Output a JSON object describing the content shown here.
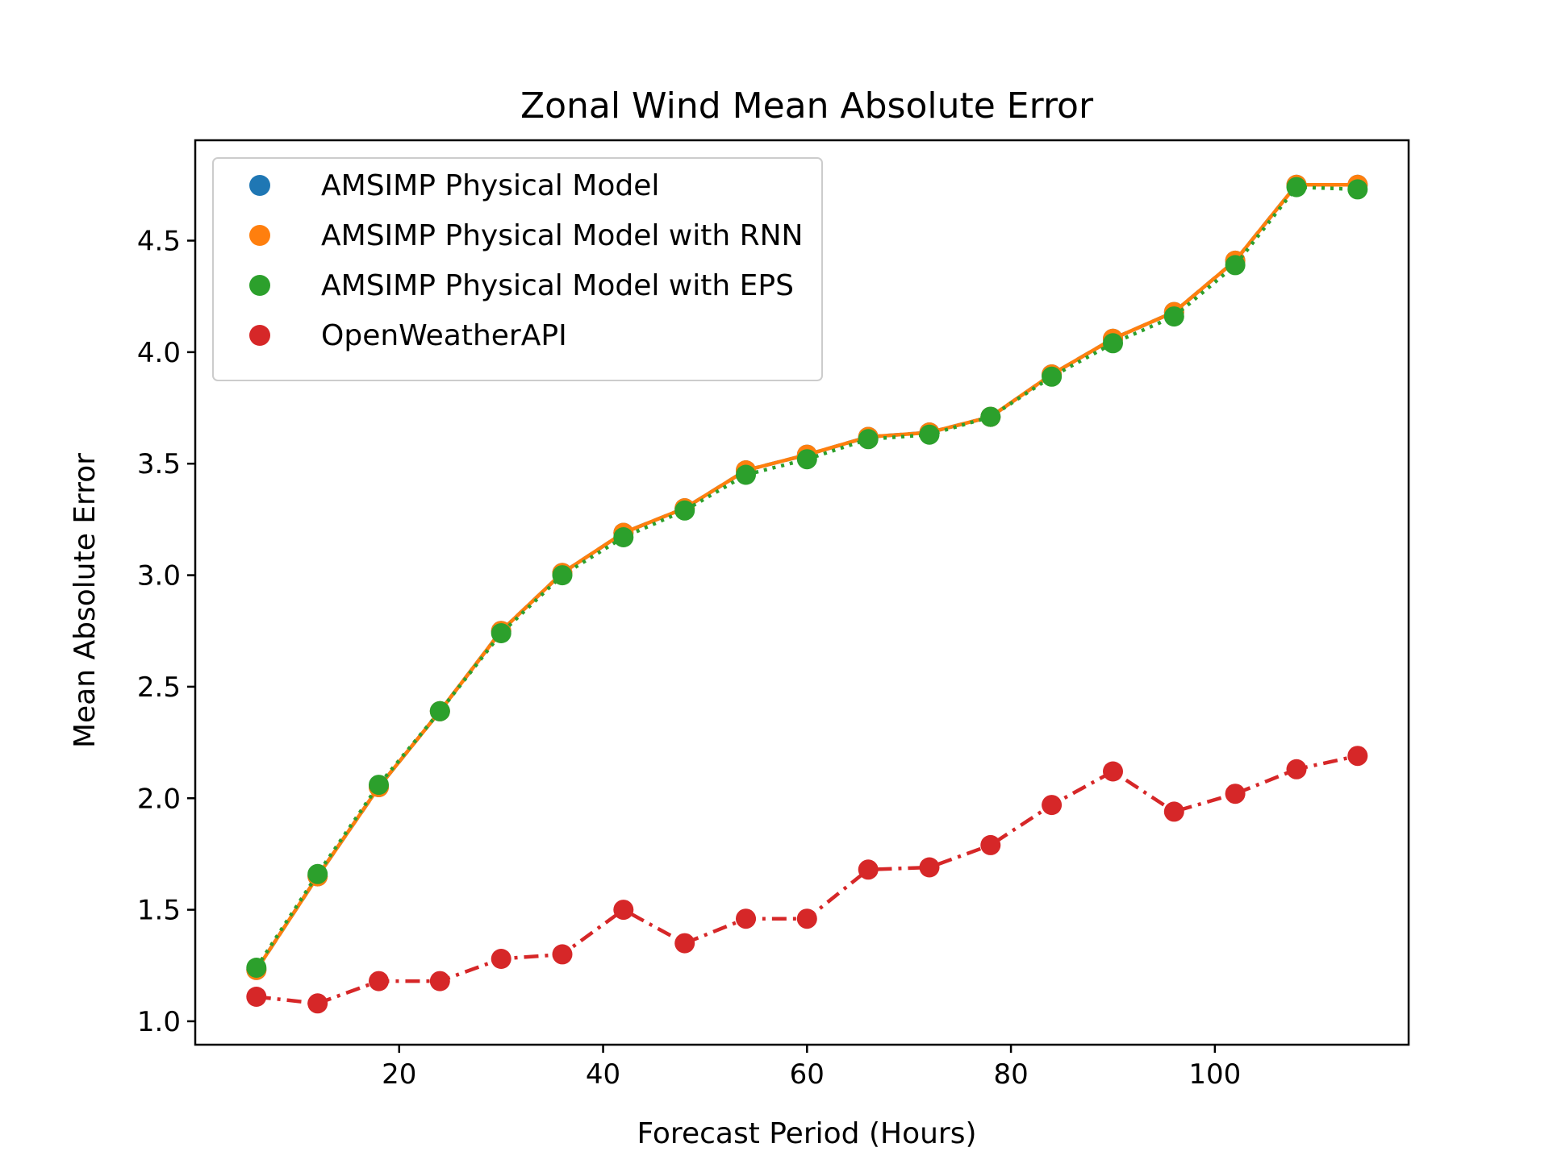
{
  "chart_data": {
    "type": "line",
    "title": "Zonal Wind Mean Absolute Error",
    "xlabel": "Forecast Period (Hours)",
    "ylabel": "Mean Absolute Error",
    "xlim": [
      0,
      119
    ],
    "ylim": [
      0.895,
      4.95
    ],
    "xticks": [
      20,
      40,
      60,
      80,
      100
    ],
    "xtick_labels": [
      "20",
      "40",
      "60",
      "80",
      "100"
    ],
    "yticks": [
      1.0,
      1.5,
      2.0,
      2.5,
      3.0,
      3.5,
      4.0,
      4.5
    ],
    "ytick_labels": [
      "1.0",
      "1.5",
      "2.0",
      "2.5",
      "3.0",
      "3.5",
      "4.0",
      "4.5"
    ],
    "grid": false,
    "legend_position": "top-left",
    "x": [
      6,
      12,
      18,
      24,
      30,
      36,
      42,
      48,
      54,
      60,
      66,
      72,
      78,
      84,
      90,
      96,
      102,
      108,
      114
    ],
    "series": [
      {
        "name": "AMSIMP Physical Model",
        "color": "#1f77b4",
        "linestyle": "dashed",
        "values": [
          1.23,
          1.65,
          2.05,
          2.39,
          2.75,
          3.01,
          3.19,
          3.3,
          3.47,
          3.54,
          3.62,
          3.64,
          3.71,
          3.9,
          4.06,
          4.18,
          4.41,
          4.75,
          4.75
        ]
      },
      {
        "name": "AMSIMP Physical Model with RNN",
        "color": "#ff7f0e",
        "linestyle": "solid",
        "values": [
          1.23,
          1.65,
          2.05,
          2.39,
          2.75,
          3.01,
          3.19,
          3.3,
          3.47,
          3.54,
          3.62,
          3.64,
          3.71,
          3.9,
          4.06,
          4.18,
          4.41,
          4.75,
          4.75
        ]
      },
      {
        "name": "AMSIMP Physical Model with EPS",
        "color": "#2ca02c",
        "linestyle": "dotted",
        "values": [
          1.24,
          1.66,
          2.06,
          2.39,
          2.74,
          3.0,
          3.17,
          3.29,
          3.45,
          3.52,
          3.61,
          3.63,
          3.71,
          3.89,
          4.04,
          4.16,
          4.39,
          4.74,
          4.73
        ]
      },
      {
        "name": "OpenWeatherAPI",
        "color": "#d62728",
        "linestyle": "dashdot",
        "values": [
          1.11,
          1.08,
          1.18,
          1.18,
          1.28,
          1.3,
          1.5,
          1.35,
          1.46,
          1.46,
          1.68,
          1.69,
          1.79,
          1.97,
          2.12,
          1.94,
          2.02,
          2.13,
          2.19
        ]
      }
    ]
  }
}
